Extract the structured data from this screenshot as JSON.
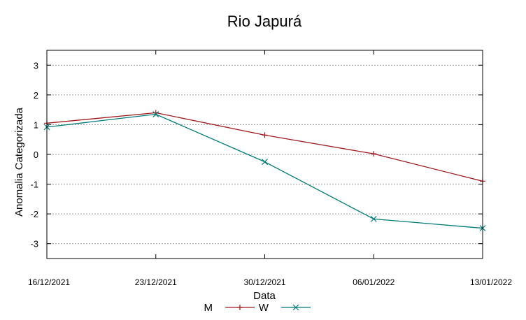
{
  "chart_data": {
    "type": "line",
    "title": "Rio Japurá",
    "xlabel": "Data",
    "ylabel": "Anomalia Categorizada",
    "categories": [
      "16/12/2021",
      "23/12/2021",
      "30/12/2021",
      "06/01/2022",
      "13/01/2022"
    ],
    "ylim": [
      -3.5,
      3.5
    ],
    "yticks": [
      3,
      2,
      1,
      0,
      -1,
      -2,
      -3
    ],
    "grid": true,
    "legend_position": "bottom",
    "series": [
      {
        "name": "M",
        "color": "#a0191c",
        "marker": "plus",
        "values": [
          1.05,
          1.4,
          0.65,
          0.02,
          -0.9
        ]
      },
      {
        "name": "W",
        "color": "#007b7b",
        "marker": "x",
        "values": [
          0.92,
          1.35,
          -0.25,
          -2.17,
          -2.48
        ]
      }
    ]
  }
}
